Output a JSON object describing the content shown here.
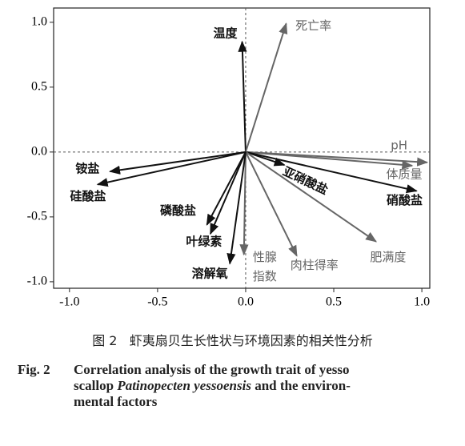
{
  "chart_data": {
    "type": "biplot",
    "xlim": [
      -1.09,
      1.045
    ],
    "ylim": [
      -1.05,
      1.11
    ],
    "xticks": [
      {
        "value": -1,
        "label": "-1.0"
      },
      {
        "value": -0.5,
        "label": "-0.5"
      },
      {
        "value": 0,
        "label": "0.0"
      },
      {
        "value": 0.5,
        "label": "0.5"
      },
      {
        "value": 1,
        "label": "1.0"
      }
    ],
    "yticks": [
      {
        "value": -1,
        "label": "-1.0"
      },
      {
        "value": -0.5,
        "label": "-0.5"
      },
      {
        "value": 0,
        "label": "0.0"
      },
      {
        "value": 0.5,
        "label": "0.5"
      },
      {
        "value": 1,
        "label": "1.0"
      }
    ],
    "vectors": [
      {
        "name": "温度",
        "x": -0.02,
        "y": 0.85,
        "color": "#111"
      },
      {
        "name": "死亡率",
        "x": 0.23,
        "y": 0.99,
        "color": "#666"
      },
      {
        "name": "pH",
        "x": 1.03,
        "y": -0.08,
        "color": "#666"
      },
      {
        "name": "体质量",
        "x": 0.945,
        "y": -0.105,
        "color": "#666"
      },
      {
        "name": "硝酸盐",
        "x": 0.97,
        "y": -0.3,
        "color": "#111"
      },
      {
        "name": "亚硝酸盐",
        "x": 0.22,
        "y": -0.1,
        "color": "#111"
      },
      {
        "name": "肥满度",
        "x": 0.74,
        "y": -0.69,
        "color": "#666"
      },
      {
        "name": "肉柱得率",
        "x": 0.29,
        "y": -0.8,
        "color": "#666"
      },
      {
        "name": "性腺指数",
        "x": -0.01,
        "y": -0.79,
        "color": "#666"
      },
      {
        "name": "溶解氧",
        "x": -0.09,
        "y": -0.86,
        "color": "#111"
      },
      {
        "name": "叶绿素",
        "x": -0.2,
        "y": -0.63,
        "color": "#111"
      },
      {
        "name": "磷酸盐",
        "x": -0.22,
        "y": -0.56,
        "color": "#111"
      },
      {
        "name": "铵盐",
        "x": -0.77,
        "y": -0.15,
        "color": "#111"
      },
      {
        "name": "硅酸盐",
        "x": -0.84,
        "y": -0.25,
        "color": "#111"
      }
    ]
  },
  "caption": {
    "label_cn": "图 2",
    "text_cn": "虾夷扇贝生长性状与环境因素的相关性分析",
    "label_en": "Fig. 2",
    "lines": [
      "Correlation analysis of the growth trait of yesso",
      "scallop ",
      "Patinopecten yessoensis",
      " and the environ-",
      "mental factors"
    ]
  }
}
